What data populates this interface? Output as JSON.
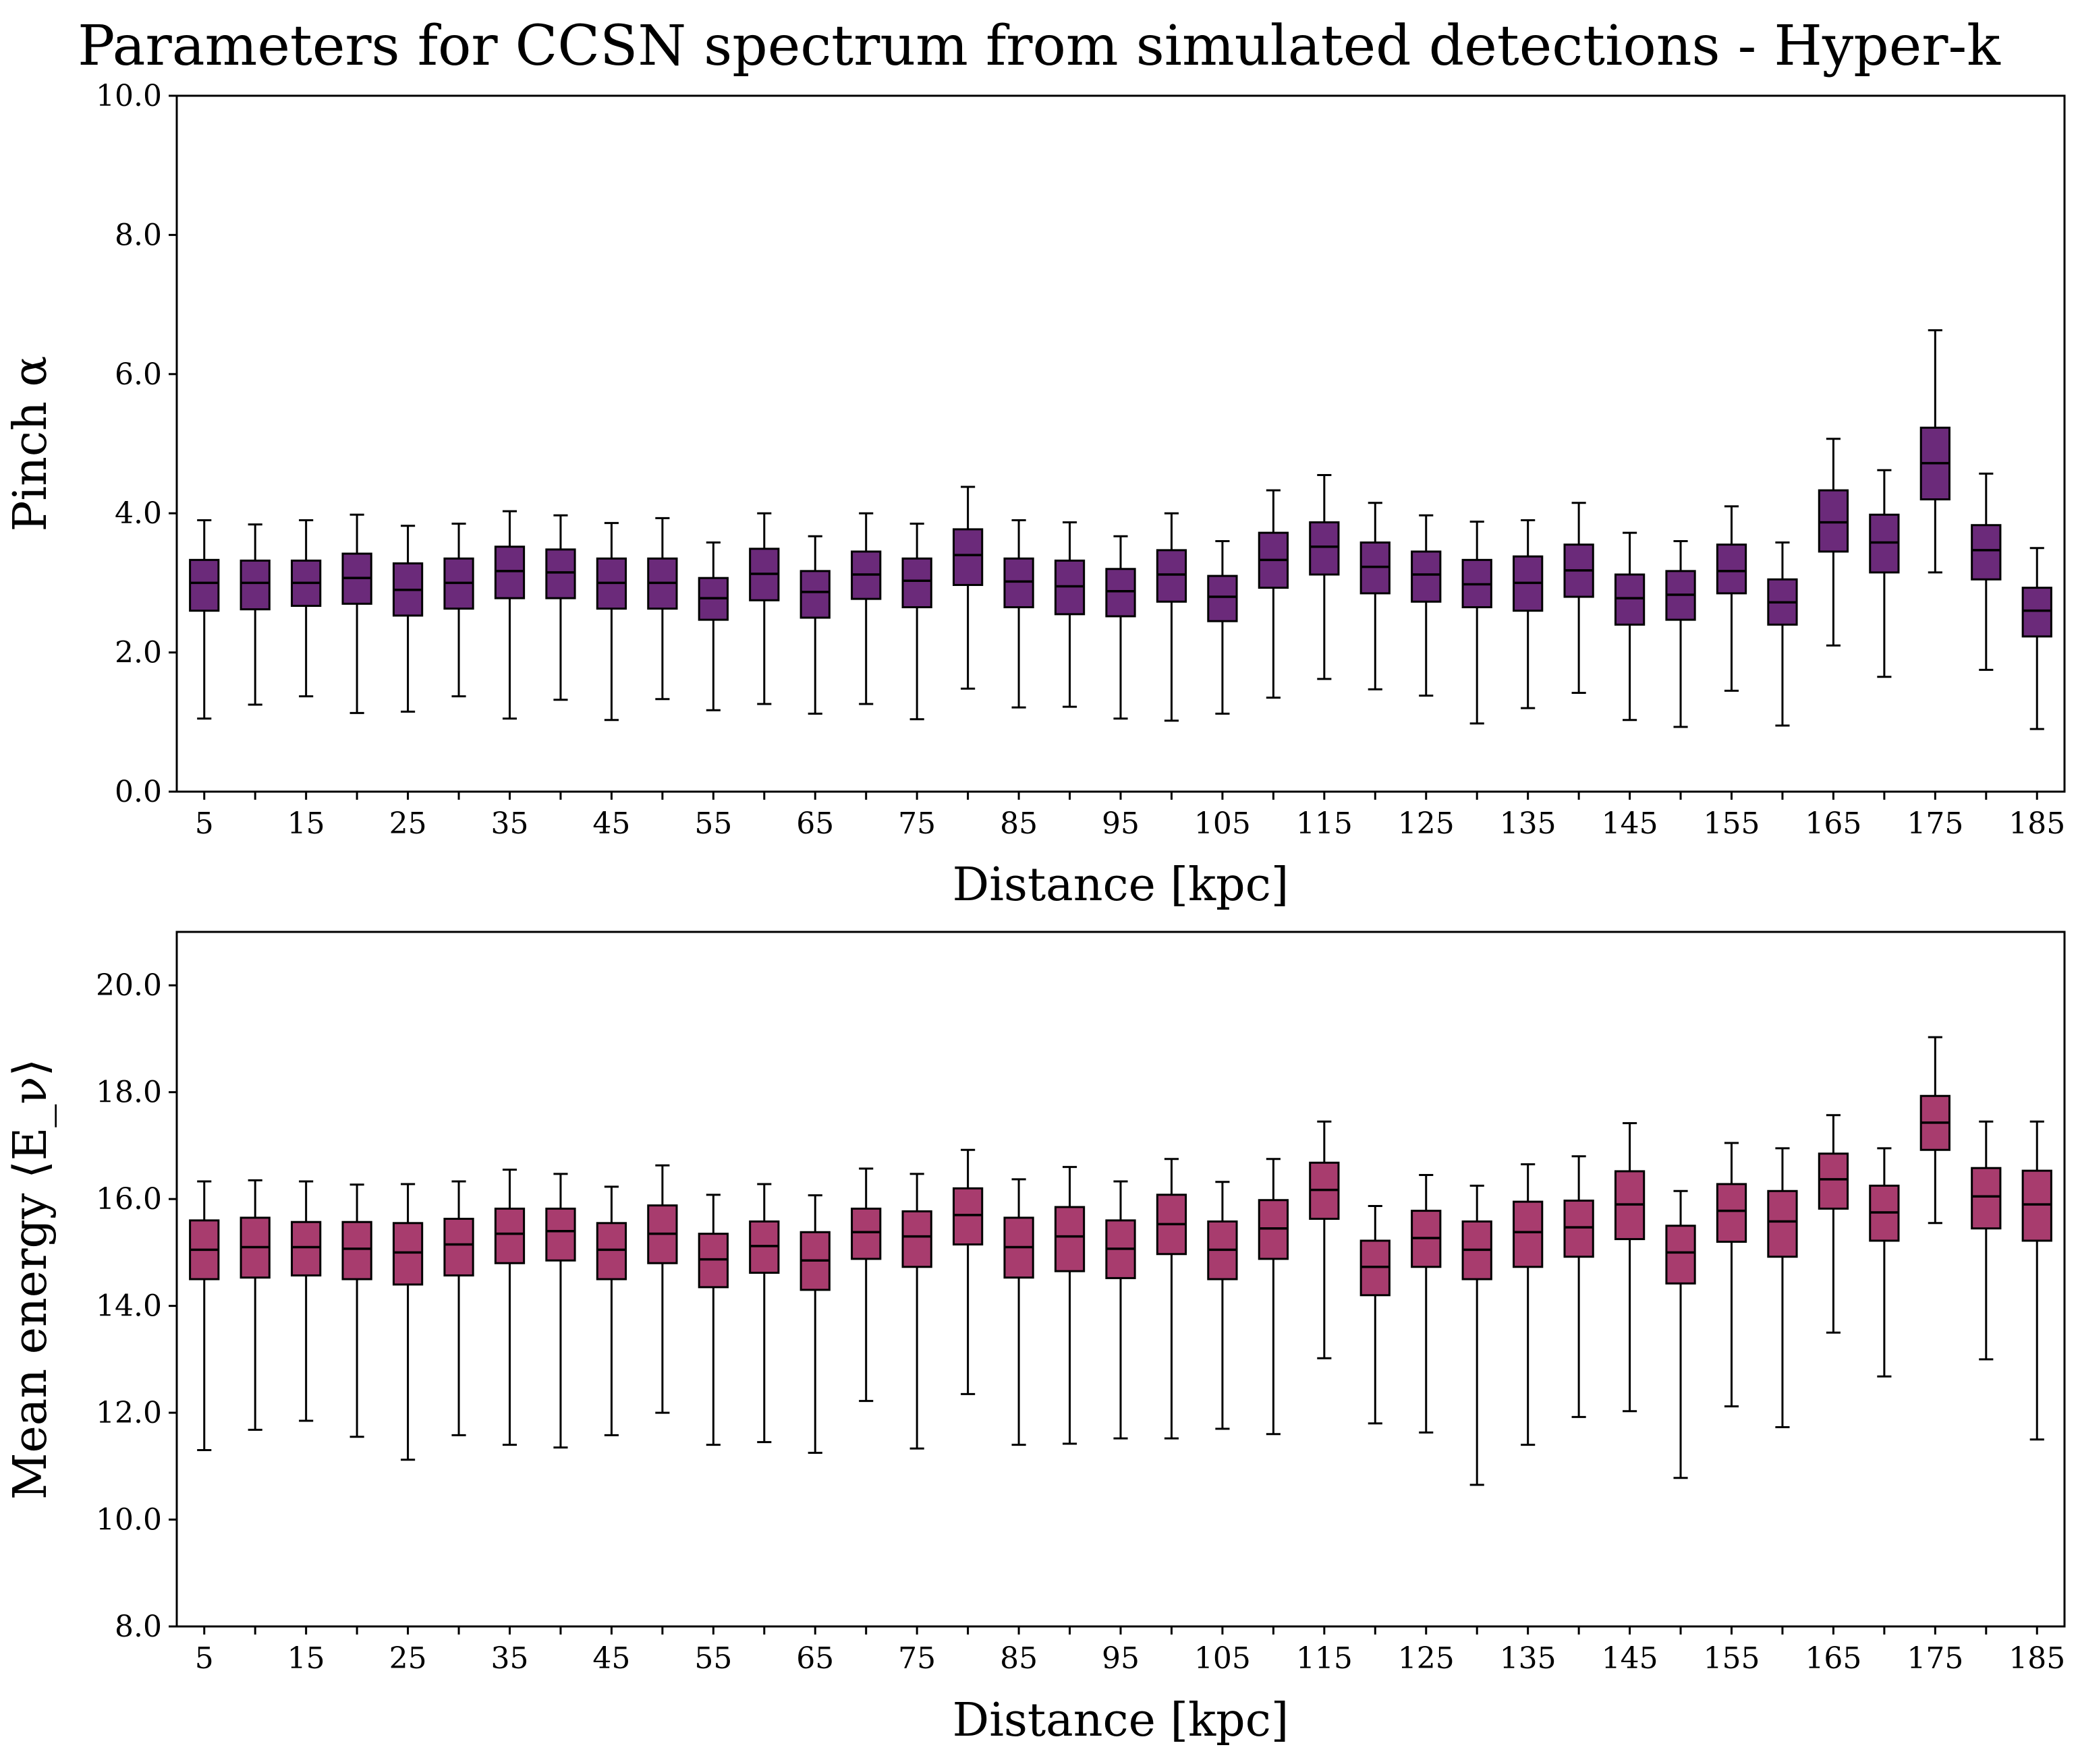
{
  "title": "Parameters for CCSN spectrum from simulated detections - Hyper-k",
  "colors": {
    "top_box": "#6b2a7a",
    "bottom_box": "#a83c6e",
    "edge": "#000000",
    "background": "#ffffff"
  },
  "chart_data": [
    {
      "type": "box",
      "title": "Parameters for CCSN spectrum from simulated detections - Hyper-k",
      "xlabel": "Distance [kpc]",
      "ylabel": "Pinch α",
      "ylim": [
        0,
        10
      ],
      "yticks": [
        "0.0",
        "2.0",
        "4.0",
        "6.0",
        "8.0",
        "10.0"
      ],
      "xtick_labels": [
        "5",
        "15",
        "25",
        "35",
        "45",
        "55",
        "65",
        "75",
        "85",
        "95",
        "105",
        "115",
        "125",
        "135",
        "145",
        "155",
        "165",
        "175",
        "185"
      ],
      "grid": false,
      "color": "#6b2a7a",
      "categories": [
        5,
        10,
        15,
        20,
        25,
        30,
        35,
        40,
        45,
        50,
        55,
        60,
        65,
        70,
        75,
        80,
        85,
        90,
        95,
        100,
        105,
        110,
        115,
        120,
        125,
        130,
        135,
        140,
        145,
        150,
        155,
        160,
        165,
        170,
        175,
        180,
        185
      ],
      "boxes": [
        {
          "whislo": 1.05,
          "q1": 2.6,
          "med": 3.0,
          "q3": 3.33,
          "whishi": 3.9
        },
        {
          "whislo": 1.25,
          "q1": 2.62,
          "med": 3.0,
          "q3": 3.32,
          "whishi": 3.84
        },
        {
          "whislo": 1.37,
          "q1": 2.67,
          "med": 3.0,
          "q3": 3.32,
          "whishi": 3.9
        },
        {
          "whislo": 1.13,
          "q1": 2.7,
          "med": 3.07,
          "q3": 3.42,
          "whishi": 3.98
        },
        {
          "whislo": 1.15,
          "q1": 2.53,
          "med": 2.9,
          "q3": 3.28,
          "whishi": 3.82
        },
        {
          "whislo": 1.37,
          "q1": 2.63,
          "med": 3.0,
          "q3": 3.35,
          "whishi": 3.85
        },
        {
          "whislo": 1.05,
          "q1": 2.78,
          "med": 3.17,
          "q3": 3.52,
          "whishi": 4.03
        },
        {
          "whislo": 1.32,
          "q1": 2.78,
          "med": 3.15,
          "q3": 3.48,
          "whishi": 3.97
        },
        {
          "whislo": 1.03,
          "q1": 2.63,
          "med": 3.0,
          "q3": 3.35,
          "whishi": 3.86
        },
        {
          "whislo": 1.33,
          "q1": 2.63,
          "med": 3.0,
          "q3": 3.35,
          "whishi": 3.93
        },
        {
          "whislo": 1.17,
          "q1": 2.47,
          "med": 2.78,
          "q3": 3.07,
          "whishi": 3.58
        },
        {
          "whislo": 1.26,
          "q1": 2.75,
          "med": 3.13,
          "q3": 3.49,
          "whishi": 4.0
        },
        {
          "whislo": 1.12,
          "q1": 2.5,
          "med": 2.87,
          "q3": 3.17,
          "whishi": 3.67
        },
        {
          "whislo": 1.26,
          "q1": 2.77,
          "med": 3.12,
          "q3": 3.45,
          "whishi": 4.0
        },
        {
          "whislo": 1.04,
          "q1": 2.65,
          "med": 3.03,
          "q3": 3.35,
          "whishi": 3.85
        },
        {
          "whislo": 1.48,
          "q1": 2.97,
          "med": 3.4,
          "q3": 3.77,
          "whishi": 4.38
        },
        {
          "whislo": 1.21,
          "q1": 2.65,
          "med": 3.02,
          "q3": 3.35,
          "whishi": 3.9
        },
        {
          "whislo": 1.22,
          "q1": 2.55,
          "med": 2.95,
          "q3": 3.32,
          "whishi": 3.87
        },
        {
          "whislo": 1.05,
          "q1": 2.52,
          "med": 2.88,
          "q3": 3.2,
          "whishi": 3.67
        },
        {
          "whislo": 1.02,
          "q1": 2.73,
          "med": 3.12,
          "q3": 3.47,
          "whishi": 4.0
        },
        {
          "whislo": 1.12,
          "q1": 2.45,
          "med": 2.8,
          "q3": 3.1,
          "whishi": 3.6
        },
        {
          "whislo": 1.35,
          "q1": 2.93,
          "med": 3.33,
          "q3": 3.72,
          "whishi": 4.33
        },
        {
          "whislo": 1.62,
          "q1": 3.12,
          "med": 3.52,
          "q3": 3.87,
          "whishi": 4.55
        },
        {
          "whislo": 1.47,
          "q1": 2.85,
          "med": 3.23,
          "q3": 3.58,
          "whishi": 4.15
        },
        {
          "whislo": 1.38,
          "q1": 2.73,
          "med": 3.12,
          "q3": 3.45,
          "whishi": 3.97
        },
        {
          "whislo": 0.98,
          "q1": 2.65,
          "med": 2.98,
          "q3": 3.33,
          "whishi": 3.88
        },
        {
          "whislo": 1.2,
          "q1": 2.6,
          "med": 3.0,
          "q3": 3.38,
          "whishi": 3.9
        },
        {
          "whislo": 1.42,
          "q1": 2.8,
          "med": 3.18,
          "q3": 3.55,
          "whishi": 4.15
        },
        {
          "whislo": 1.03,
          "q1": 2.4,
          "med": 2.78,
          "q3": 3.12,
          "whishi": 3.72
        },
        {
          "whislo": 0.93,
          "q1": 2.47,
          "med": 2.83,
          "q3": 3.17,
          "whishi": 3.6
        },
        {
          "whislo": 1.45,
          "q1": 2.85,
          "med": 3.17,
          "q3": 3.55,
          "whishi": 4.1
        },
        {
          "whislo": 0.95,
          "q1": 2.4,
          "med": 2.72,
          "q3": 3.05,
          "whishi": 3.58
        },
        {
          "whislo": 2.1,
          "q1": 3.45,
          "med": 3.87,
          "q3": 4.33,
          "whishi": 5.07
        },
        {
          "whislo": 1.65,
          "q1": 3.15,
          "med": 3.58,
          "q3": 3.98,
          "whishi": 4.62
        },
        {
          "whislo": 3.15,
          "q1": 4.2,
          "med": 4.72,
          "q3": 5.23,
          "whishi": 6.63
        },
        {
          "whislo": 1.75,
          "q1": 3.05,
          "med": 3.47,
          "q3": 3.83,
          "whishi": 4.57
        },
        {
          "whislo": 0.9,
          "q1": 2.23,
          "med": 2.6,
          "q3": 2.93,
          "whishi": 3.5
        }
      ]
    },
    {
      "type": "box",
      "xlabel": "Distance [kpc]",
      "ylabel": "Mean energy ⟨E_ν⟩",
      "ylim": [
        8,
        21
      ],
      "yticks": [
        "8.0",
        "10.0",
        "12.0",
        "14.0",
        "16.0",
        "18.0",
        "20.0"
      ],
      "xtick_labels": [
        "5",
        "15",
        "25",
        "35",
        "45",
        "55",
        "65",
        "75",
        "85",
        "95",
        "105",
        "115",
        "125",
        "135",
        "145",
        "155",
        "165",
        "175",
        "185"
      ],
      "grid": false,
      "color": "#a83c6e",
      "categories": [
        5,
        10,
        15,
        20,
        25,
        30,
        35,
        40,
        45,
        50,
        55,
        60,
        65,
        70,
        75,
        80,
        85,
        90,
        95,
        100,
        105,
        110,
        115,
        120,
        125,
        130,
        135,
        140,
        145,
        150,
        155,
        160,
        165,
        170,
        175,
        180,
        185
      ],
      "boxes": [
        {
          "whislo": 11.3,
          "q1": 14.5,
          "med": 15.05,
          "q3": 15.6,
          "whishi": 16.33
        },
        {
          "whislo": 11.68,
          "q1": 14.53,
          "med": 15.1,
          "q3": 15.65,
          "whishi": 16.35
        },
        {
          "whislo": 11.85,
          "q1": 14.57,
          "med": 15.1,
          "q3": 15.57,
          "whishi": 16.33
        },
        {
          "whislo": 11.55,
          "q1": 14.5,
          "med": 15.07,
          "q3": 15.57,
          "whishi": 16.27
        },
        {
          "whislo": 11.12,
          "q1": 14.4,
          "med": 15.0,
          "q3": 15.55,
          "whishi": 16.28
        },
        {
          "whislo": 11.58,
          "q1": 14.57,
          "med": 15.15,
          "q3": 15.63,
          "whishi": 16.33
        },
        {
          "whislo": 11.4,
          "q1": 14.8,
          "med": 15.35,
          "q3": 15.82,
          "whishi": 16.55
        },
        {
          "whislo": 11.35,
          "q1": 14.85,
          "med": 15.4,
          "q3": 15.82,
          "whishi": 16.47
        },
        {
          "whislo": 11.58,
          "q1": 14.5,
          "med": 15.05,
          "q3": 15.55,
          "whishi": 16.23
        },
        {
          "whislo": 12.0,
          "q1": 14.8,
          "med": 15.35,
          "q3": 15.88,
          "whishi": 16.63
        },
        {
          "whislo": 11.4,
          "q1": 14.35,
          "med": 14.87,
          "q3": 15.35,
          "whishi": 16.08
        },
        {
          "whislo": 11.45,
          "q1": 14.62,
          "med": 15.12,
          "q3": 15.58,
          "whishi": 16.28
        },
        {
          "whislo": 11.25,
          "q1": 14.3,
          "med": 14.85,
          "q3": 15.38,
          "whishi": 16.07
        },
        {
          "whislo": 12.22,
          "q1": 14.88,
          "med": 15.38,
          "q3": 15.82,
          "whishi": 16.57
        },
        {
          "whislo": 11.33,
          "q1": 14.73,
          "med": 15.3,
          "q3": 15.77,
          "whishi": 16.47
        },
        {
          "whislo": 12.35,
          "q1": 15.15,
          "med": 15.7,
          "q3": 16.2,
          "whishi": 16.92
        },
        {
          "whislo": 11.4,
          "q1": 14.53,
          "med": 15.1,
          "q3": 15.65,
          "whishi": 16.37
        },
        {
          "whislo": 11.42,
          "q1": 14.65,
          "med": 15.3,
          "q3": 15.85,
          "whishi": 16.6
        },
        {
          "whislo": 11.52,
          "q1": 14.52,
          "med": 15.07,
          "q3": 15.6,
          "whishi": 16.33
        },
        {
          "whislo": 11.52,
          "q1": 14.97,
          "med": 15.53,
          "q3": 16.08,
          "whishi": 16.75
        },
        {
          "whislo": 11.7,
          "q1": 14.5,
          "med": 15.05,
          "q3": 15.58,
          "whishi": 16.32
        },
        {
          "whislo": 11.6,
          "q1": 14.88,
          "med": 15.45,
          "q3": 15.98,
          "whishi": 16.75
        },
        {
          "whislo": 13.02,
          "q1": 15.63,
          "med": 16.17,
          "q3": 16.68,
          "whishi": 17.45
        },
        {
          "whislo": 11.8,
          "q1": 14.2,
          "med": 14.73,
          "q3": 15.22,
          "whishi": 15.87
        },
        {
          "whislo": 11.63,
          "q1": 14.73,
          "med": 15.27,
          "q3": 15.78,
          "whishi": 16.45
        },
        {
          "whislo": 10.65,
          "q1": 14.5,
          "med": 15.05,
          "q3": 15.58,
          "whishi": 16.25
        },
        {
          "whislo": 11.4,
          "q1": 14.73,
          "med": 15.38,
          "q3": 15.95,
          "whishi": 16.65
        },
        {
          "whislo": 11.92,
          "q1": 14.92,
          "med": 15.47,
          "q3": 15.97,
          "whishi": 16.8
        },
        {
          "whislo": 12.03,
          "q1": 15.25,
          "med": 15.9,
          "q3": 16.52,
          "whishi": 17.42
        },
        {
          "whislo": 10.78,
          "q1": 14.42,
          "med": 15.0,
          "q3": 15.5,
          "whishi": 16.15
        },
        {
          "whislo": 12.12,
          "q1": 15.2,
          "med": 15.78,
          "q3": 16.28,
          "whishi": 17.05
        },
        {
          "whislo": 11.73,
          "q1": 14.92,
          "med": 15.58,
          "q3": 16.15,
          "whishi": 16.95
        },
        {
          "whislo": 13.5,
          "q1": 15.82,
          "med": 16.37,
          "q3": 16.85,
          "whishi": 17.57
        },
        {
          "whislo": 12.68,
          "q1": 15.22,
          "med": 15.75,
          "q3": 16.25,
          "whishi": 16.95
        },
        {
          "whislo": 15.55,
          "q1": 16.92,
          "med": 17.43,
          "q3": 17.93,
          "whishi": 19.03
        },
        {
          "whislo": 13.0,
          "q1": 15.45,
          "med": 16.05,
          "q3": 16.58,
          "whishi": 17.45
        },
        {
          "whislo": 11.5,
          "q1": 15.22,
          "med": 15.9,
          "q3": 16.53,
          "whishi": 17.45
        }
      ]
    }
  ]
}
